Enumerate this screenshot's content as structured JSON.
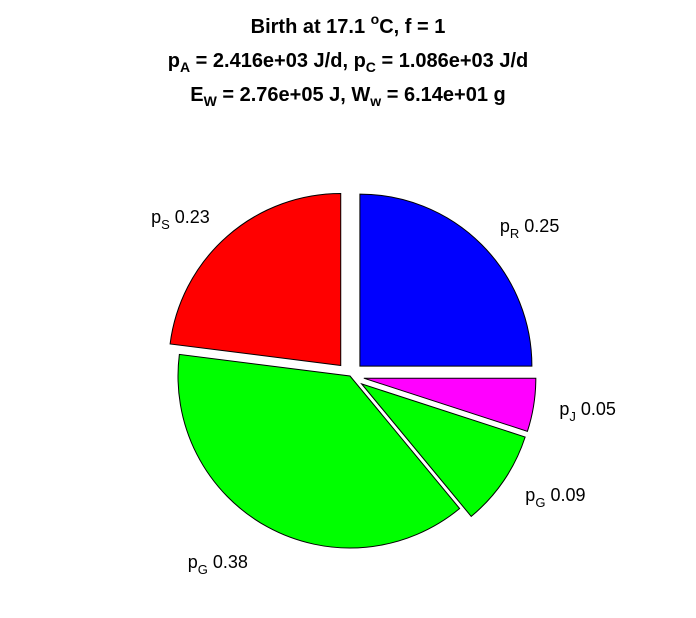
{
  "title": {
    "line1": {
      "text": "Birth at 17.1 ",
      "sup": "o",
      "text2": "C, f = 1"
    },
    "line2": {
      "a": "p",
      "a_sub": "A",
      "a_val": " = 2.416e+03 J/d, ",
      "b": "p",
      "b_sub": "C",
      "b_val": " = 1.086e+03 J/d"
    },
    "line3": {
      "a": "E",
      "a_sub": "W",
      "a_val": " = 2.76e+05 J, ",
      "b": "W",
      "b_sub": "w",
      "b_val": " = 6.14e+01 g"
    }
  },
  "chart_data": {
    "type": "pie",
    "start": "top",
    "direction": "clockwise",
    "slices": [
      {
        "name": "p",
        "sub": "R",
        "value": 0.25,
        "label": "0.25",
        "color": "#0000ff",
        "exploded": true
      },
      {
        "name": "p",
        "sub": "J",
        "value": 0.05,
        "label": "0.05",
        "color": "#ff00ff",
        "exploded": true
      },
      {
        "name": "p",
        "sub": "G",
        "value": 0.09,
        "label": "0.09",
        "color": "#00ff00",
        "exploded": true
      },
      {
        "name": "p",
        "sub": "G",
        "value": 0.38,
        "label": "0.38",
        "color": "#00ff00",
        "exploded": false
      },
      {
        "name": "p",
        "sub": "S",
        "value": 0.23,
        "label": "0.23",
        "color": "#ff0000",
        "exploded": true
      }
    ]
  }
}
